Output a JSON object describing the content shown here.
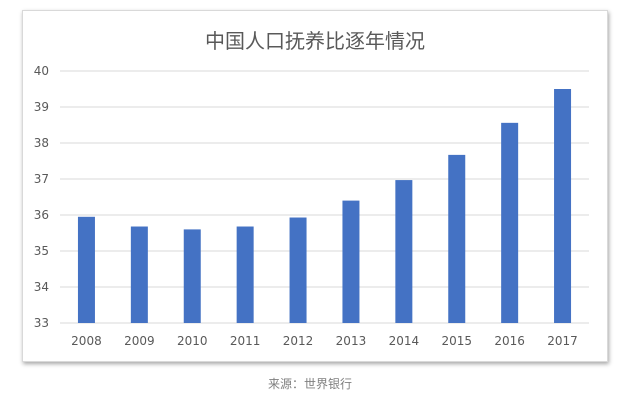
{
  "chart_data": {
    "type": "bar",
    "title": "中国人口抚养比逐年情况",
    "categories": [
      "2008",
      "2009",
      "2010",
      "2011",
      "2012",
      "2013",
      "2014",
      "2015",
      "2016",
      "2017"
    ],
    "values": [
      35.95,
      35.68,
      35.6,
      35.68,
      35.93,
      36.4,
      36.97,
      37.67,
      38.56,
      39.5
    ],
    "ylim": [
      33,
      40
    ],
    "yticks": [
      "33",
      "34",
      "35",
      "36",
      "37",
      "38",
      "39",
      "40"
    ],
    "grid": true,
    "bar_color": "#4472c4",
    "xlabel": "",
    "ylabel": ""
  },
  "source_note": "来源：世界银行"
}
